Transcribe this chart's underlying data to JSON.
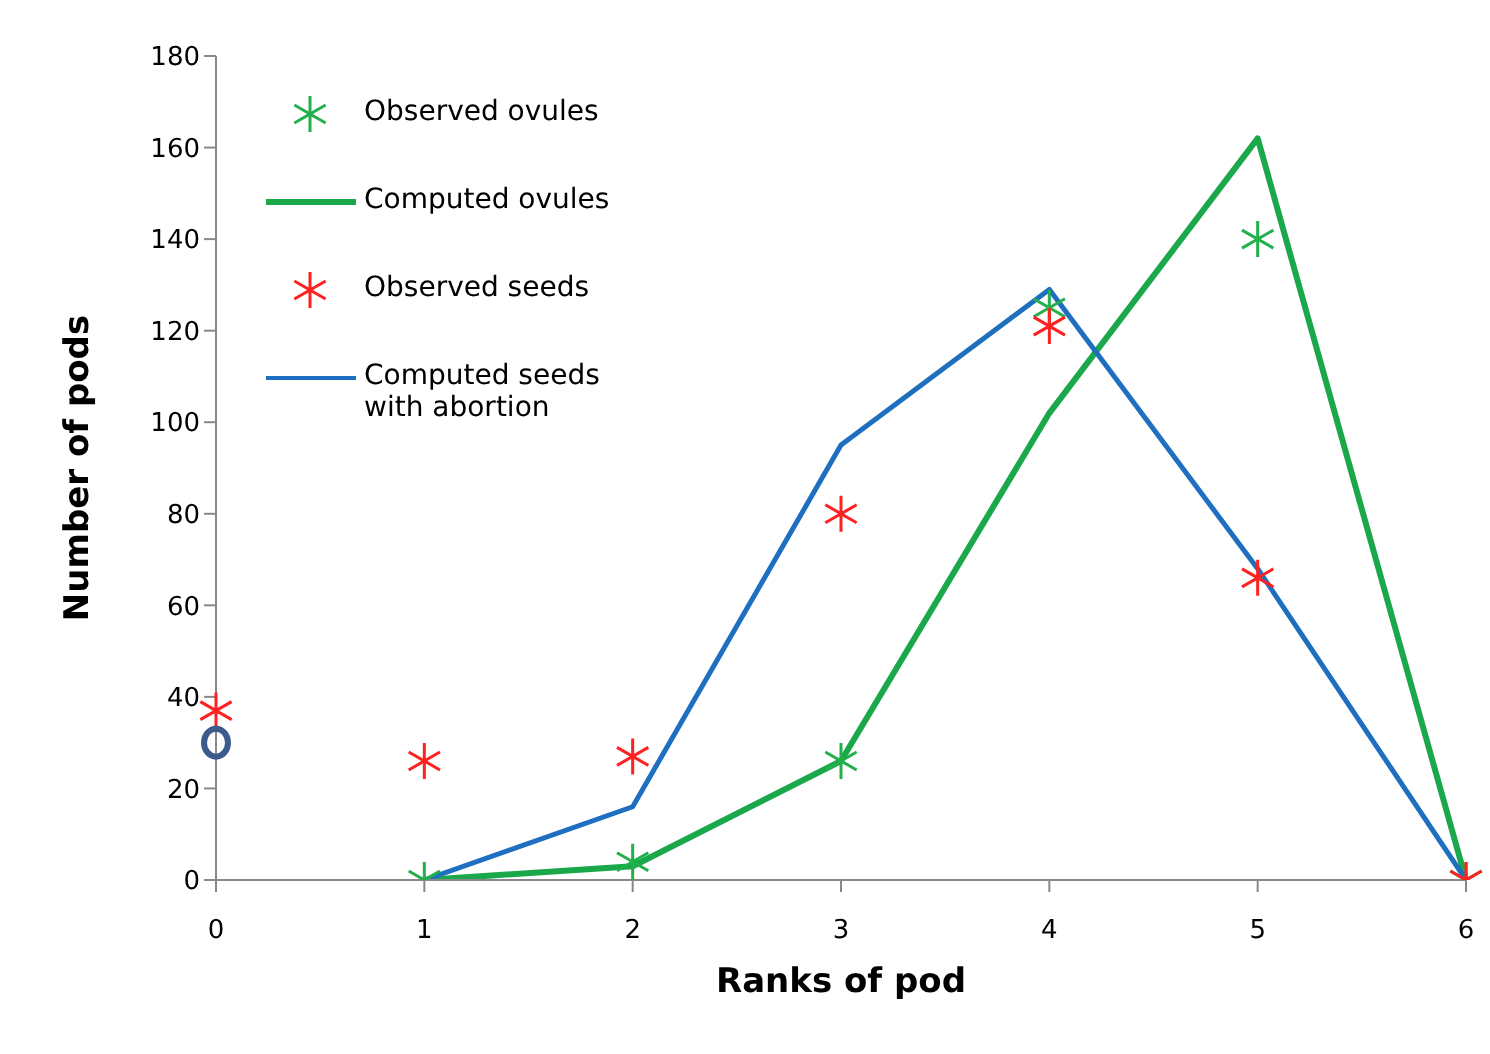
{
  "chart_data": {
    "type": "line",
    "xlabel": "Ranks of  pod",
    "ylabel": "Number of pods",
    "categories": [
      "0",
      "1",
      "2",
      "3",
      "4",
      "5",
      "6"
    ],
    "series": [
      {
        "name": "Observed ovules",
        "type": "scatter",
        "color": "#22b04c",
        "marker": "cross",
        "values": [
          null,
          0,
          4,
          26,
          125,
          140,
          0
        ]
      },
      {
        "name": "Computed ovules",
        "color": "#1aa84a",
        "values": [
          null,
          0,
          3,
          26,
          102,
          162,
          0
        ]
      },
      {
        "name": "Observed seeds",
        "type": "scatter",
        "color": "#ff2020",
        "marker": "cross",
        "values": [
          37,
          26,
          27,
          80,
          121,
          66,
          0
        ]
      },
      {
        "name": "Computed seeds with abortion",
        "color": "#1f6fc0",
        "values": [
          null,
          0,
          16,
          95,
          129,
          68,
          0
        ]
      },
      {
        "type": "scatter",
        "color": "#3c5a8c",
        "marker": "circle",
        "values": [
          30,
          null,
          null,
          null,
          null,
          null,
          null
        ]
      }
    ],
    "ylim": [
      0,
      180
    ],
    "yticks": [
      0,
      20,
      40,
      60,
      80,
      100,
      120,
      140,
      160,
      180
    ],
    "grid": false,
    "legend": "top left",
    "line_style": "solid"
  }
}
